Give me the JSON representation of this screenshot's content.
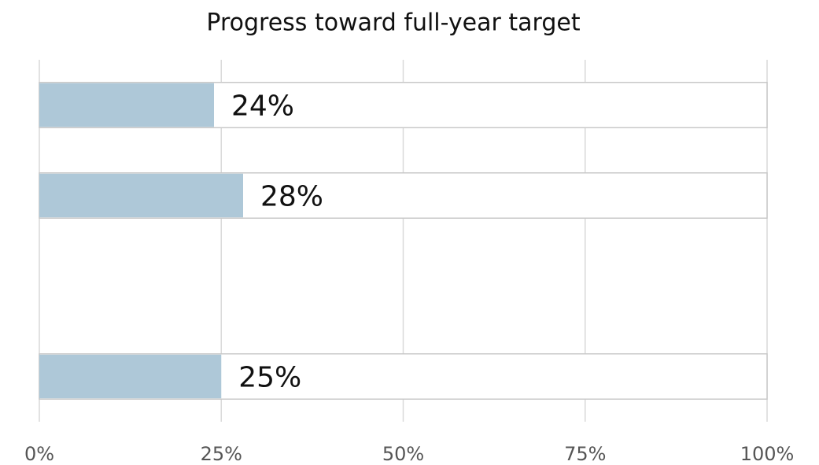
{
  "chart_data": {
    "type": "bar",
    "orientation": "horizontal",
    "title": "Progress toward full-year target",
    "categories": [
      null,
      null,
      null,
      null
    ],
    "values": [
      24,
      28,
      null,
      25
    ],
    "value_labels": [
      "24%",
      "28%",
      null,
      "25%"
    ],
    "color": "#aec8d8",
    "xlim": [
      0,
      100
    ],
    "xticks": [
      {
        "value": 0,
        "label": "0%"
      },
      {
        "value": 25,
        "label": "25%"
      },
      {
        "value": 50,
        "label": "50%"
      },
      {
        "value": 75,
        "label": "75%"
      },
      {
        "value": 100,
        "label": "100%"
      }
    ],
    "grid": true
  }
}
